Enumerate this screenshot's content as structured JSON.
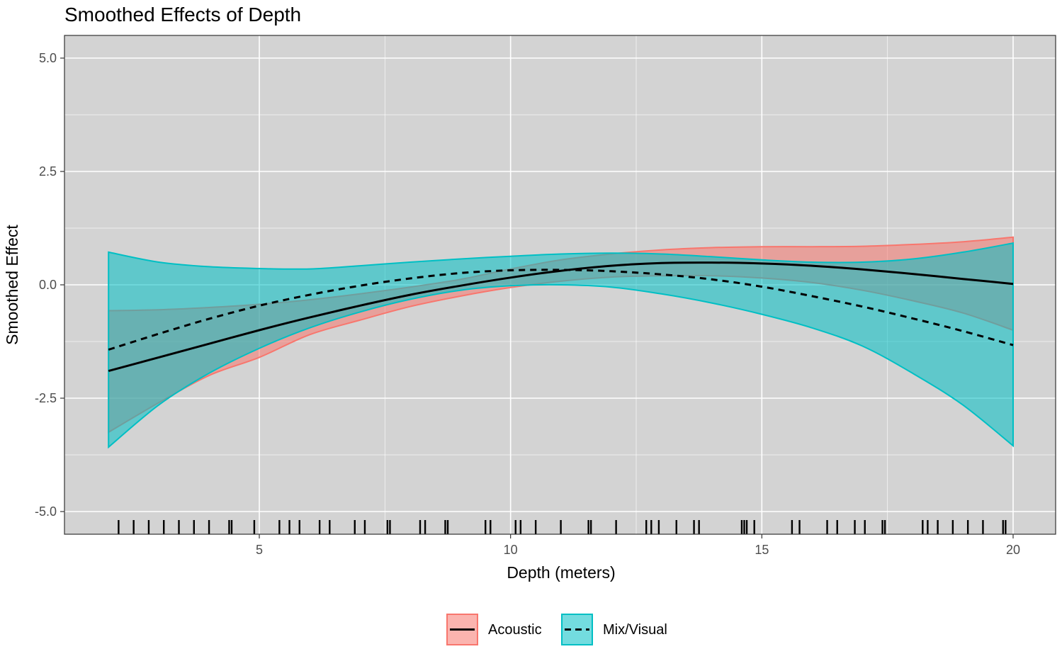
{
  "chart_data": {
    "type": "line",
    "title": "Smoothed Effects of Depth",
    "xlabel": "Depth (meters)",
    "ylabel": "Smoothed Effect",
    "xlim": [
      1.8,
      20.8
    ],
    "ylim": [
      -5.5,
      5.5
    ],
    "x_ticks": [
      5,
      10,
      15,
      20
    ],
    "x_tick_labels": [
      "5",
      "10",
      "15",
      "20"
    ],
    "y_ticks": [
      5.0,
      2.5,
      0.0,
      -2.5,
      -5.0
    ],
    "y_tick_labels": [
      "5.0",
      "2.5",
      "0.0",
      "-2.5",
      "-5.0"
    ],
    "grid": true,
    "legend_position": "bottom",
    "background": "#d3d3d3",
    "series": [
      {
        "name": "Acoustic",
        "linetype": "solid",
        "fill_color": "#f8766d",
        "x": [
          2,
          3,
          4,
          5,
          6,
          7,
          8,
          9,
          10,
          11,
          12,
          13,
          14,
          15,
          16,
          17,
          18,
          19,
          20
        ],
        "fit": [
          -1.9,
          -1.6,
          -1.3,
          -1.0,
          -0.72,
          -0.46,
          -0.22,
          -0.02,
          0.16,
          0.31,
          0.42,
          0.48,
          0.49,
          0.47,
          0.42,
          0.34,
          0.24,
          0.13,
          0.02
        ],
        "lower": [
          -3.25,
          -2.6,
          -2.0,
          -1.6,
          -1.1,
          -0.78,
          -0.48,
          -0.25,
          -0.06,
          0.08,
          0.17,
          0.2,
          0.2,
          0.15,
          0.05,
          -0.12,
          -0.35,
          -0.62,
          -1.0
        ],
        "upper": [
          -0.57,
          -0.55,
          -0.5,
          -0.43,
          -0.33,
          -0.2,
          -0.05,
          0.12,
          0.35,
          0.55,
          0.68,
          0.77,
          0.82,
          0.84,
          0.84,
          0.85,
          0.89,
          0.95,
          1.05
        ]
      },
      {
        "name": "Mix/Visual",
        "linetype": "dashed",
        "fill_color": "#00bfc4",
        "x": [
          2,
          3,
          4,
          5,
          6,
          7,
          8,
          9,
          10,
          11,
          12,
          13,
          14,
          15,
          16,
          17,
          18,
          19,
          20
        ],
        "fit": [
          -1.43,
          -1.08,
          -0.75,
          -0.46,
          -0.22,
          -0.02,
          0.14,
          0.26,
          0.32,
          0.33,
          0.3,
          0.23,
          0.12,
          -0.04,
          -0.25,
          -0.48,
          -0.74,
          -1.02,
          -1.33
        ],
        "lower": [
          -3.58,
          -2.65,
          -1.95,
          -1.4,
          -0.95,
          -0.6,
          -0.32,
          -0.12,
          -0.02,
          0.0,
          -0.05,
          -0.2,
          -0.4,
          -0.65,
          -0.95,
          -1.35,
          -1.95,
          -2.65,
          -3.55
        ],
        "upper": [
          0.72,
          0.5,
          0.4,
          0.36,
          0.35,
          0.42,
          0.5,
          0.57,
          0.63,
          0.68,
          0.7,
          0.68,
          0.62,
          0.55,
          0.5,
          0.5,
          0.57,
          0.72,
          0.92
        ]
      }
    ],
    "rug_x": [
      2.2,
      2.5,
      2.8,
      3.1,
      3.4,
      3.7,
      4.0,
      4.4,
      4.45,
      4.9,
      5.4,
      5.6,
      5.8,
      6.2,
      6.4,
      6.9,
      7.1,
      7.55,
      7.6,
      8.2,
      8.3,
      8.7,
      8.75,
      9.5,
      9.6,
      10.1,
      10.2,
      10.5,
      11.0,
      11.55,
      11.6,
      12.1,
      12.7,
      12.8,
      12.95,
      13.3,
      13.65,
      13.75,
      14.6,
      14.65,
      14.7,
      14.85,
      15.6,
      15.75,
      16.3,
      16.5,
      16.85,
      17.05,
      17.4,
      17.45,
      18.2,
      18.3,
      18.5,
      18.8,
      19.1,
      19.4,
      19.8,
      19.85
    ],
    "legend": [
      {
        "label": "Acoustic",
        "linetype": "solid",
        "fill_color": "#f8766d"
      },
      {
        "label": "Mix/Visual",
        "linetype": "dashed",
        "fill_color": "#00bfc4"
      }
    ]
  }
}
